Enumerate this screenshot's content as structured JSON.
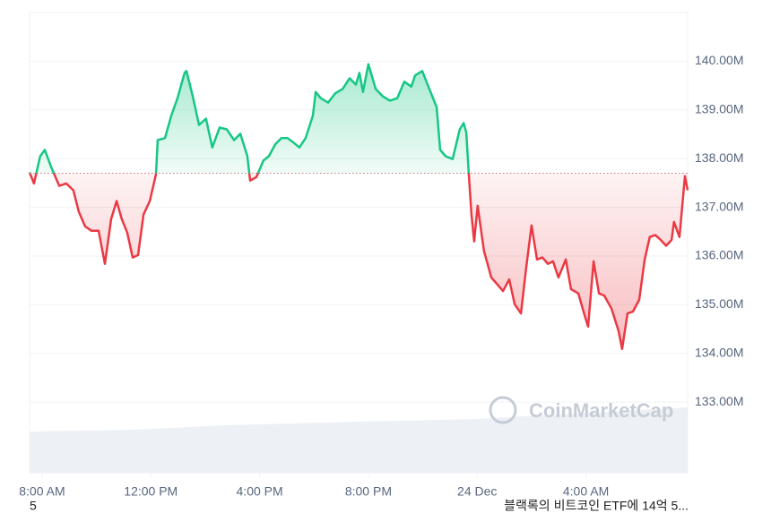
{
  "chart_data": {
    "type": "line",
    "baseline": 137.7,
    "up_color": "#16c784",
    "down_color": "#ea3943",
    "grid": true,
    "watermark": "CoinMarketCap",
    "xlim": [
      7.54,
      31.74
    ],
    "xticks": [
      {
        "value": 8,
        "label": "8:00 AM"
      },
      {
        "value": 12,
        "label": "12:00 PM"
      },
      {
        "value": 16,
        "label": "4:00 PM"
      },
      {
        "value": 20,
        "label": "8:00 PM"
      },
      {
        "value": 24,
        "label": "24 Dec"
      },
      {
        "value": 28,
        "label": "4:00 AM"
      }
    ],
    "ylim": [
      131.55,
      141.0
    ],
    "yticks": [
      {
        "value": 133,
        "label": "133.00M"
      },
      {
        "value": 134,
        "label": "134.00M"
      },
      {
        "value": 135,
        "label": "135.00M"
      },
      {
        "value": 136,
        "label": "136.00M"
      },
      {
        "value": 137,
        "label": "137.00M"
      },
      {
        "value": 138,
        "label": "138.00M"
      },
      {
        "value": 139,
        "label": "139.00M"
      },
      {
        "value": 140,
        "label": "140.00M"
      }
    ],
    "x": [
      7.54,
      7.7,
      7.93,
      8.1,
      8.33,
      8.63,
      8.89,
      9.15,
      9.35,
      9.58,
      9.81,
      10.08,
      10.31,
      10.54,
      10.74,
      10.93,
      11.13,
      11.33,
      11.53,
      11.73,
      11.96,
      12.19,
      12.25,
      12.52,
      12.75,
      12.98,
      13.24,
      13.31,
      13.54,
      13.77,
      14.03,
      14.26,
      14.53,
      14.79,
      15.06,
      15.29,
      15.55,
      15.65,
      15.88,
      16.14,
      16.34,
      16.57,
      16.8,
      17.03,
      17.27,
      17.46,
      17.69,
      17.96,
      18.06,
      18.25,
      18.52,
      18.78,
      19.05,
      19.31,
      19.54,
      19.67,
      19.8,
      20.0,
      20.27,
      20.53,
      20.79,
      21.06,
      21.32,
      21.58,
      21.72,
      21.98,
      22.24,
      22.51,
      22.64,
      22.84,
      23.1,
      23.36,
      23.5,
      23.6,
      23.69,
      23.79,
      23.89,
      24.02,
      24.25,
      24.52,
      24.75,
      24.95,
      25.18,
      25.38,
      25.61,
      25.8,
      26.0,
      26.2,
      26.4,
      26.6,
      26.79,
      26.99,
      27.26,
      27.45,
      27.72,
      27.95,
      28.08,
      28.28,
      28.48,
      28.67,
      28.94,
      29.2,
      29.33,
      29.53,
      29.73,
      29.96,
      30.16,
      30.35,
      30.55,
      30.75,
      30.95,
      31.15,
      31.24,
      31.44,
      31.64,
      31.74
    ],
    "values": [
      137.72,
      137.49,
      138.05,
      138.18,
      137.83,
      137.44,
      137.49,
      137.35,
      136.91,
      136.61,
      136.52,
      136.52,
      135.84,
      136.76,
      137.13,
      136.76,
      136.48,
      135.97,
      136.02,
      136.85,
      137.13,
      137.68,
      138.38,
      138.42,
      138.88,
      139.24,
      139.76,
      139.8,
      139.28,
      138.69,
      138.82,
      138.23,
      138.64,
      138.6,
      138.38,
      138.51,
      138.05,
      137.55,
      137.62,
      137.96,
      138.05,
      138.29,
      138.42,
      138.42,
      138.32,
      138.23,
      138.42,
      138.88,
      139.37,
      139.24,
      139.15,
      139.34,
      139.43,
      139.65,
      139.52,
      139.76,
      139.37,
      139.94,
      139.43,
      139.28,
      139.19,
      139.24,
      139.58,
      139.48,
      139.71,
      139.8,
      139.43,
      139.06,
      138.18,
      138.05,
      137.99,
      138.6,
      138.73,
      138.54,
      137.72,
      136.85,
      136.3,
      137.03,
      136.11,
      135.56,
      135.41,
      135.28,
      135.52,
      135.01,
      134.82,
      135.74,
      136.63,
      135.93,
      135.97,
      135.84,
      135.89,
      135.56,
      135.93,
      135.32,
      135.23,
      134.79,
      134.55,
      135.89,
      135.23,
      135.19,
      134.92,
      134.46,
      134.09,
      134.82,
      134.86,
      135.1,
      135.93,
      136.39,
      136.43,
      136.33,
      136.21,
      136.33,
      136.7,
      136.39,
      137.64,
      137.35
    ]
  },
  "footer": {
    "left": "5",
    "right": "블랙록의 비트코인 ETF에 14억 5..."
  }
}
